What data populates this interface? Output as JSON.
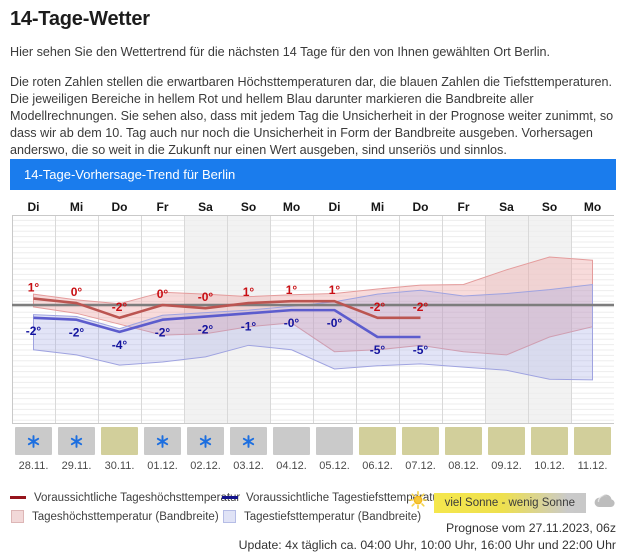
{
  "page": {
    "title": "14-Tage-Wetter"
  },
  "intro": {
    "p1": "Hier sehen Sie den Wettertrend für die nächsten 14 Tage für den von Ihnen gewählten Ort Berlin.",
    "p2": "Die roten Zahlen stellen die erwartbaren Höchsttemperaturen dar, die blauen Zahlen die Tiefsttemperaturen. Die jeweiligen Bereiche in hellem Rot und hellem Blau darunter markieren die Bandbreite aller Modellrechnungen. Sie sehen also, dass mit jedem Tag die Unsicherheit in der Prognose weiter zunimmt, so dass wir ab dem 10. Tag auch nur noch die Unsicherheit in Form der Bandbreite ausgeben. Vorhersagen anderswo, die so weit in die Zukunft nur einen Wert ausgeben, sind unseriös und sinnlos."
  },
  "panel": {
    "header": "14-Tage-Vorhersage-Trend für Berlin"
  },
  "chart_data": {
    "type": "line",
    "title": "14-Tage-Vorhersage-Trend für Berlin",
    "day_names": [
      "Di",
      "Mi",
      "Do",
      "Fr",
      "Sa",
      "So",
      "Mo",
      "Di",
      "Mi",
      "Do",
      "Fr",
      "Sa",
      "So",
      "Mo"
    ],
    "dates": [
      "28.11.",
      "29.11.",
      "30.11.",
      "01.12.",
      "02.12.",
      "03.12.",
      "04.12.",
      "05.12.",
      "06.12.",
      "07.12.",
      "08.12.",
      "09.12.",
      "10.12.",
      "11.12."
    ],
    "weekend": [
      false,
      false,
      false,
      false,
      true,
      true,
      false,
      false,
      false,
      false,
      false,
      true,
      true,
      false
    ],
    "ylim": [
      -13,
      14
    ],
    "zero_line": 0,
    "series": [
      {
        "name": "Voraussichtliche Tageshöchsttemperatur",
        "kind": "line",
        "color": "#bb5551",
        "values": [
          1,
          0.3,
          -2,
          0,
          -0.5,
          0.3,
          0.6,
          0.6,
          -2,
          -2
        ]
      },
      {
        "name": "Voraussichtliche Tagestiefsttemperatur",
        "kind": "line",
        "color": "#5c5ccd",
        "values": [
          -2,
          -2.3,
          -4.2,
          -2.3,
          -1.8,
          -1.3,
          -0.8,
          -0.8,
          -5,
          -5
        ]
      },
      {
        "name": "Tageshöchsttemperatur (Bandbreite)",
        "kind": "band",
        "stroke": "#e49c9c",
        "fill": "rgba(236,160,160,0.38)",
        "hi": [
          1.7,
          0.8,
          0.2,
          2.0,
          1.7,
          1.3,
          1.6,
          1.8,
          2.5,
          3.1,
          3.2,
          5.5,
          7.5,
          7.0
        ],
        "lo": [
          -0.3,
          -1.3,
          -3.0,
          -4.7,
          -4.5,
          -3.4,
          -2.8,
          -7.3,
          -7.0,
          -6.3,
          -7.3,
          -7.8,
          -5.0,
          -3.4
        ]
      },
      {
        "name": "Tagestiefsttemperatur (Bandbreite)",
        "kind": "band",
        "stroke": "#9fa3e0",
        "fill": "rgba(160,165,228,0.30)",
        "hi": [
          -1.5,
          -1.8,
          -3.7,
          -1.6,
          -1.2,
          -0.8,
          -0.2,
          0.5,
          1.7,
          2.3,
          1.4,
          1.8,
          2.4,
          3.2
        ],
        "lo": [
          -7.0,
          -7.8,
          -9.4,
          -8.9,
          -8.1,
          -6.3,
          -7.0,
          -10.0,
          -9.5,
          -9.2,
          -9.7,
          -10.2,
          -11.6,
          -11.7
        ]
      }
    ],
    "point_labels": {
      "max": [
        "1°",
        "0°",
        "-2°",
        "0°",
        "-0°",
        "1°",
        "1°",
        "1°",
        "-2°",
        "-2°"
      ],
      "min": [
        "-2°",
        "-2°",
        "-4°",
        "-2°",
        "-2°",
        "-1°",
        "-0°",
        "-0°",
        "-5°",
        "-5°"
      ]
    },
    "icons": [
      {
        "bg": "gray",
        "icon": "snow"
      },
      {
        "bg": "gray",
        "icon": "snow"
      },
      {
        "bg": "khaki",
        "icon": null
      },
      {
        "bg": "gray",
        "icon": "snow"
      },
      {
        "bg": "gray",
        "icon": "snow"
      },
      {
        "bg": "gray",
        "icon": "snow"
      },
      {
        "bg": "gray",
        "icon": null
      },
      {
        "bg": "gray",
        "icon": null
      },
      {
        "bg": "khaki",
        "icon": null
      },
      {
        "bg": "khaki",
        "icon": null
      },
      {
        "bg": "khaki",
        "icon": null
      },
      {
        "bg": "khaki",
        "icon": null
      },
      {
        "bg": "khaki",
        "icon": null
      },
      {
        "bg": "khaki",
        "icon": null
      }
    ]
  },
  "legend": {
    "max_line": "Voraussichtliche Tageshöchsttemperatur",
    "max_band": "Tageshöchsttemperatur (Bandbreite)",
    "min_line": "Voraussichtliche Tagestiefsttemperatur",
    "min_band": "Tagestiefsttemperatur (Bandbreite)"
  },
  "sun_badge": {
    "label": "viel Sonne - wenig Sonne"
  },
  "footer": {
    "prognose": "Prognose vom 27.11.2023, 06z",
    "update": "Update: 4x täglich ca. 04:00 Uhr, 10:00 Uhr, 16:00 Uhr und 22:00 Uhr"
  },
  "colors": {
    "header_bg": "#1a7ced",
    "max_line": "#bb5551",
    "min_line": "#5c5ccd",
    "max_label": "#c80d12",
    "min_label": "#12129e",
    "zero_line": "#7d7d7d",
    "grid": "#ededed",
    "col_border": "#d9d9d9",
    "plot_border": "#c9c9c9",
    "weekend_bg": "#f2f2f2",
    "snowflake": "#1d6fe0",
    "box_gray": "#cacaca",
    "box_khaki": "#d2cf9b"
  }
}
